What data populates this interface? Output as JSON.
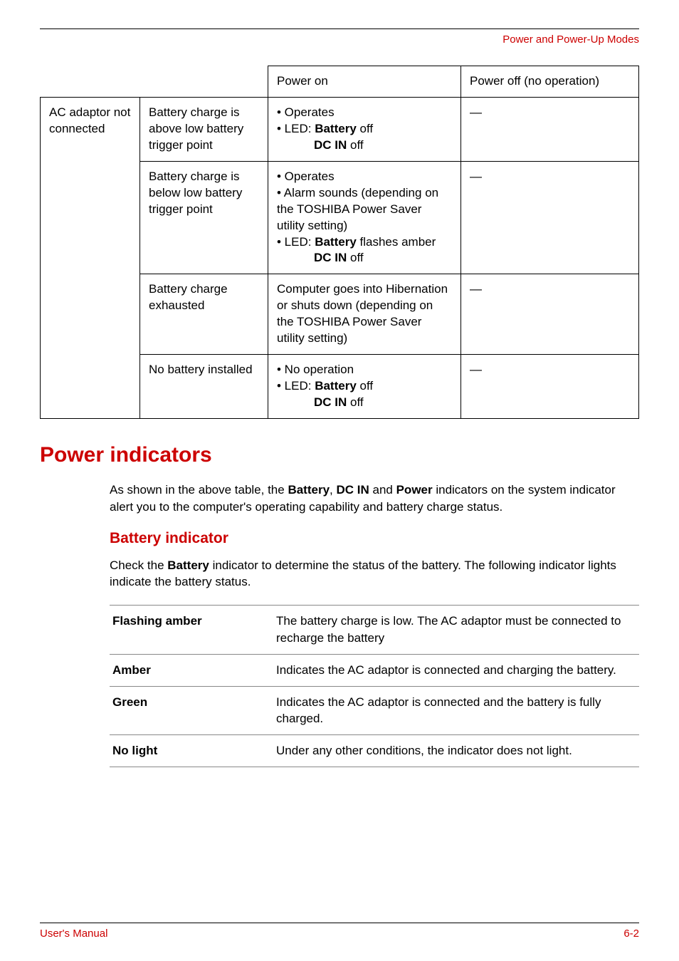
{
  "header": {
    "title": "Power and Power-Up Modes"
  },
  "colors": {
    "accent": "#cc0000",
    "text": "#000000",
    "bg": "#ffffff",
    "rule": "#888888"
  },
  "powerTable": {
    "headerRow": {
      "c3": "Power on",
      "c4": "Power off (no operation)"
    },
    "rowGroupLabel": "AC adaptor not connected",
    "rows": [
      {
        "c2": "Battery charge is above low battery  trigger point",
        "c3_l1": "• Operates",
        "c3_l2": "• LED: ",
        "c3_l2b": "Battery",
        "c3_l2a": " off",
        "c3_l3b": "DC IN",
        "c3_l3a": " off",
        "c4": "—"
      },
      {
        "c2": "Battery charge is below low battery trigger point",
        "c3_l1": "• Operates",
        "c3_l2": "• Alarm sounds (depending on the TOSHIBA Power Saver utility setting)",
        "c3_l3": "• LED: ",
        "c3_l3b": "Battery",
        "c3_l3a": " flashes amber",
        "c3_l4b": "DC IN",
        "c3_l4a": " off",
        "c4": "—"
      },
      {
        "c2": "Battery charge exhausted",
        "c3": "Computer goes into Hibernation or shuts down (depending on the TOSHIBA Power Saver utility setting)",
        "c4": "—"
      },
      {
        "c2": "No battery installed",
        "c3_l1": "• No operation",
        "c3_l2": "• LED: ",
        "c3_l2b": "Battery",
        "c3_l2a": " off",
        "c3_l3b": "DC IN",
        "c3_l3a": " off",
        "c4": "—"
      }
    ]
  },
  "section": {
    "title": "Power indicators",
    "intro_a": "As shown in the above table, the ",
    "intro_b1": "Battery",
    "intro_sep1": ", ",
    "intro_b2": "DC IN",
    "intro_sep2": " and ",
    "intro_b3": "Power",
    "intro_c": " indicators on the system indicator alert you to the computer's operating capability and battery charge status."
  },
  "sub": {
    "title": "Battery indicator",
    "intro_a": "Check the ",
    "intro_b": "Battery",
    "intro_c": " indicator to determine the status of the battery. The following indicator lights indicate the battery status."
  },
  "statusTable": {
    "rows": [
      {
        "k": "Flashing amber",
        "v": "The battery charge is low. The AC adaptor must be connected to recharge the  battery"
      },
      {
        "k": "Amber",
        "v": "Indicates the AC adaptor is connected and charging the battery."
      },
      {
        "k": "Green",
        "v": "Indicates the AC adaptor is connected and the battery is fully charged."
      },
      {
        "k": "No light",
        "v": "Under any other conditions, the indicator does not light."
      }
    ]
  },
  "footer": {
    "left": "User's Manual",
    "right": "6-2"
  }
}
